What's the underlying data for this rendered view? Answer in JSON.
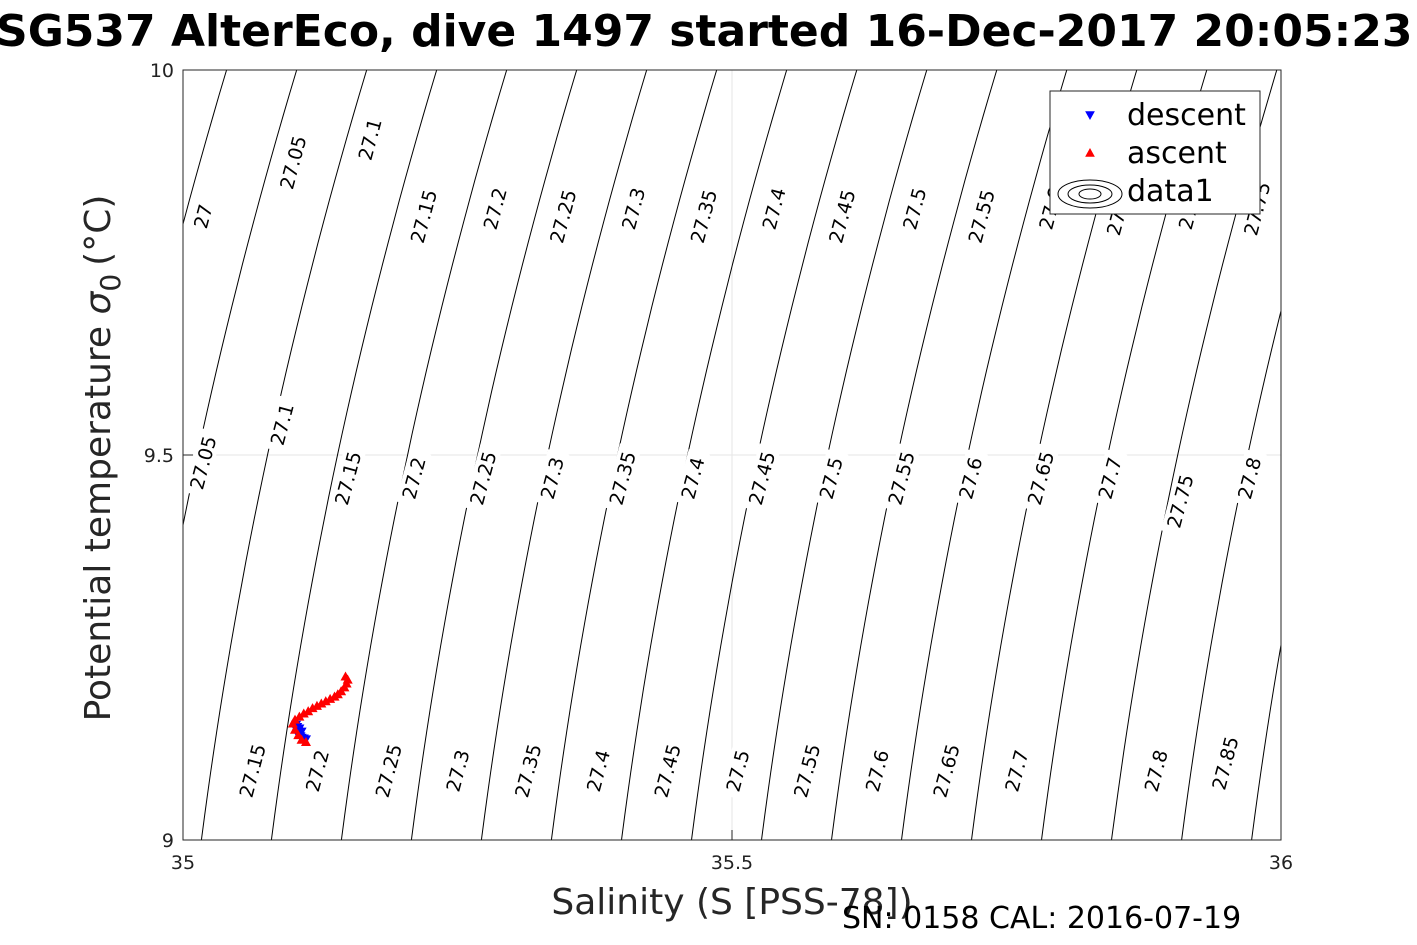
{
  "chart_data": {
    "type": "scatter",
    "title": "SG537 AlterEco, dive 1497 started 16-Dec-2017 20:05:23",
    "xlabel": "Salinity (S [PSS-78])",
    "ylabel_main": "Potential temperature",
    "ylabel_symbol": "σ",
    "ylabel_subscript": "0",
    "ylabel_unit": "(°C)",
    "xlim": [
      35,
      36
    ],
    "ylim": [
      9,
      10
    ],
    "xticks": [
      35,
      35.5,
      36
    ],
    "xtick_labels": [
      "35",
      "35.5",
      "36"
    ],
    "yticks": [
      9,
      9.5,
      10
    ],
    "ytick_labels": [
      "9",
      "9.5",
      "10"
    ],
    "grid": true,
    "legend_position": "top-right",
    "legend": [
      {
        "label": "descent",
        "marker": "triangle-down",
        "color": "#0000ff"
      },
      {
        "label": "ascent",
        "marker": "triangle-up",
        "color": "#ff0000"
      },
      {
        "label": "data1",
        "marker": "contour",
        "color": "#000000"
      }
    ],
    "contour_levels": [
      27.0,
      27.05,
      27.1,
      27.15,
      27.2,
      27.25,
      27.3,
      27.35,
      27.4,
      27.45,
      27.5,
      27.55,
      27.6,
      27.65,
      27.7,
      27.75,
      27.8,
      27.85
    ],
    "contour_labels": [
      {
        "text": "27",
        "s": 35.018,
        "t": 9.81
      },
      {
        "text": "27.05",
        "s": 35.1,
        "t": 9.88
      },
      {
        "text": "27.1",
        "s": 35.17,
        "t": 9.91
      },
      {
        "text": "27.15",
        "s": 35.219,
        "t": 9.81
      },
      {
        "text": "27.2",
        "s": 35.284,
        "t": 9.82
      },
      {
        "text": "27.25",
        "s": 35.346,
        "t": 9.81
      },
      {
        "text": "27.3",
        "s": 35.41,
        "t": 9.82
      },
      {
        "text": "27.35",
        "s": 35.474,
        "t": 9.81
      },
      {
        "text": "27.4",
        "s": 35.538,
        "t": 9.82
      },
      {
        "text": "27.45",
        "s": 35.6,
        "t": 9.81
      },
      {
        "text": "27.5",
        "s": 35.666,
        "t": 9.82
      },
      {
        "text": "27.55",
        "s": 35.727,
        "t": 9.81
      },
      {
        "text": "27.6",
        "s": 35.79,
        "t": 9.82
      },
      {
        "text": "27.65",
        "s": 35.853,
        "t": 9.82
      },
      {
        "text": "27.7",
        "s": 35.917,
        "t": 9.82
      },
      {
        "text": "27.75",
        "s": 35.978,
        "t": 9.82
      },
      {
        "text": "27.05",
        "s": 35.018,
        "t": 9.49
      },
      {
        "text": "27.1",
        "s": 35.09,
        "t": 9.54
      },
      {
        "text": "27.15",
        "s": 35.15,
        "t": 9.47
      },
      {
        "text": "27.2",
        "s": 35.21,
        "t": 9.47
      },
      {
        "text": "27.25",
        "s": 35.273,
        "t": 9.47
      },
      {
        "text": "27.3",
        "s": 35.336,
        "t": 9.47
      },
      {
        "text": "27.35",
        "s": 35.4,
        "t": 9.47
      },
      {
        "text": "27.4",
        "s": 35.464,
        "t": 9.47
      },
      {
        "text": "27.45",
        "s": 35.527,
        "t": 9.47
      },
      {
        "text": "27.5",
        "s": 35.59,
        "t": 9.47
      },
      {
        "text": "27.55",
        "s": 35.654,
        "t": 9.47
      },
      {
        "text": "27.6",
        "s": 35.717,
        "t": 9.47
      },
      {
        "text": "27.65",
        "s": 35.781,
        "t": 9.47
      },
      {
        "text": "27.7",
        "s": 35.844,
        "t": 9.47
      },
      {
        "text": "27.75",
        "s": 35.908,
        "t": 9.44
      },
      {
        "text": "27.8",
        "s": 35.971,
        "t": 9.47
      },
      {
        "text": "27.15",
        "s": 35.063,
        "t": 9.09
      },
      {
        "text": "27.2",
        "s": 35.122,
        "t": 9.09
      },
      {
        "text": "27.25",
        "s": 35.187,
        "t": 9.09
      },
      {
        "text": "27.3",
        "s": 35.25,
        "t": 9.09
      },
      {
        "text": "27.35",
        "s": 35.314,
        "t": 9.09
      },
      {
        "text": "27.4",
        "s": 35.378,
        "t": 9.09
      },
      {
        "text": "27.45",
        "s": 35.441,
        "t": 9.09
      },
      {
        "text": "27.5",
        "s": 35.505,
        "t": 9.09
      },
      {
        "text": "27.55",
        "s": 35.568,
        "t": 9.09
      },
      {
        "text": "27.6",
        "s": 35.632,
        "t": 9.09
      },
      {
        "text": "27.65",
        "s": 35.695,
        "t": 9.09
      },
      {
        "text": "27.7",
        "s": 35.759,
        "t": 9.09
      },
      {
        "text": "27.8",
        "s": 35.886,
        "t": 9.09
      },
      {
        "text": "27.85",
        "s": 35.949,
        "t": 9.1
      }
    ],
    "series": [
      {
        "name": "descent",
        "marker": "triangle-down",
        "color": "#0000ff",
        "points": [
          [
            35.103,
            9.15
          ],
          [
            35.104,
            9.147
          ],
          [
            35.103,
            9.144
          ],
          [
            35.105,
            9.142
          ],
          [
            35.104,
            9.139
          ],
          [
            35.106,
            9.137
          ],
          [
            35.107,
            9.135
          ],
          [
            35.108,
            9.133
          ],
          [
            35.11,
            9.132
          ],
          [
            35.112,
            9.131
          ],
          [
            35.106,
            9.145
          ],
          [
            35.108,
            9.141
          ]
        ]
      },
      {
        "name": "ascent",
        "marker": "triangle-up",
        "color": "#ff0000",
        "points": [
          [
            35.112,
            9.127
          ],
          [
            35.108,
            9.13
          ],
          [
            35.105,
            9.136
          ],
          [
            35.102,
            9.143
          ],
          [
            35.1,
            9.151
          ],
          [
            35.102,
            9.156
          ],
          [
            35.106,
            9.16
          ],
          [
            35.11,
            9.164
          ],
          [
            35.114,
            9.167
          ],
          [
            35.118,
            9.171
          ],
          [
            35.122,
            9.174
          ],
          [
            35.126,
            9.177
          ],
          [
            35.13,
            9.18
          ],
          [
            35.134,
            9.183
          ],
          [
            35.138,
            9.186
          ],
          [
            35.141,
            9.189
          ],
          [
            35.144,
            9.193
          ],
          [
            35.147,
            9.198
          ],
          [
            35.149,
            9.203
          ],
          [
            35.15,
            9.208
          ],
          [
            35.148,
            9.212
          ]
        ]
      }
    ]
  },
  "footer": {
    "sn_cal": "SN: 0158  CAL: 2016-07-19"
  }
}
